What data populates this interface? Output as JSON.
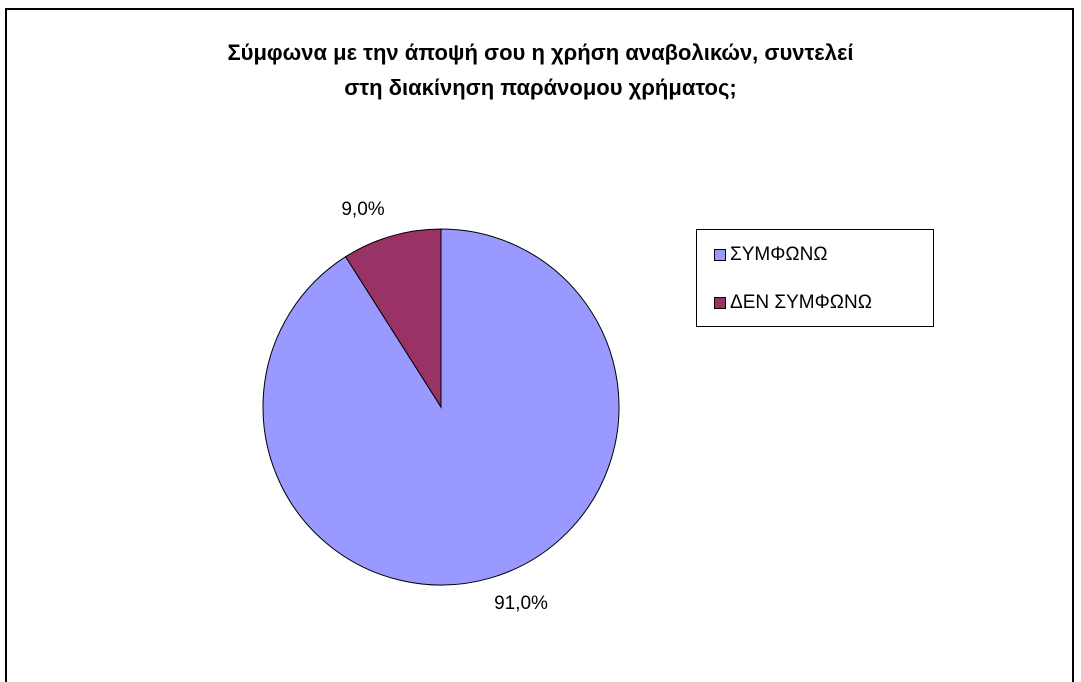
{
  "chart_data": {
    "type": "pie",
    "title": [
      "Σύμφωνα με την άποψή σου η χρήση αναβολικών, συντελεί",
      "στη διακίνηση παράνομου χρήματος;"
    ],
    "slices": [
      {
        "name": "ΣΥΜΦΩΝΩ",
        "value": 91.0,
        "label": "91,0%",
        "color": "#9999FF"
      },
      {
        "name": "ΔΕΝ ΣΥΜΦΩΝΩ",
        "value": 9.0,
        "label": "9,0%",
        "color": "#993366"
      }
    ],
    "start_angle": "12 o'clock",
    "legend": {
      "position": "right"
    }
  }
}
